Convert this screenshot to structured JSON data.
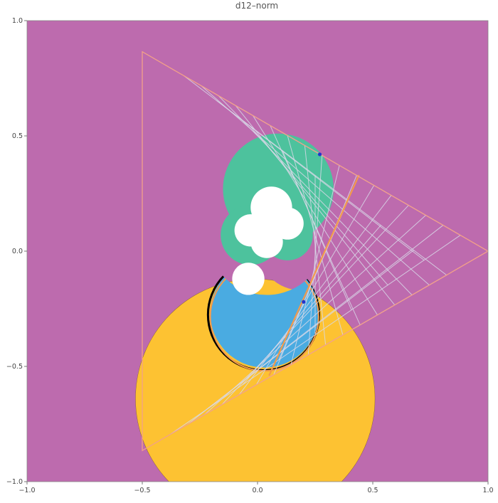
{
  "title": "d12–norm",
  "axes": {
    "x_range": [
      -1.0,
      1.0
    ],
    "y_range": [
      -1.0,
      1.0
    ],
    "x_ticks": [
      -1.0,
      -0.5,
      0.0,
      0.5,
      1.0
    ],
    "y_ticks": [
      -1.0,
      -0.5,
      0.0,
      0.5,
      1.0
    ],
    "x_tick_labels": [
      "−1.0",
      "−0.5",
      "0.0",
      "0.5",
      "1.0"
    ],
    "y_tick_labels": [
      "−1.0",
      "−0.5",
      "0.0",
      "0.5",
      "1.0"
    ]
  },
  "colors": {
    "background_region": "#BD6BAE",
    "yellow_region": "#FDC232",
    "blue_region": "#4AABE1",
    "green_region": "#4DC29D",
    "white_region": "#FFFFFF",
    "triangle": "#F2A089",
    "mesh": "#D8D8E8",
    "orange_band": "#F39A4B",
    "point": "#2234CC"
  },
  "shapes": {
    "yellow_disk": {
      "center": [
        -0.01,
        -0.64
      ],
      "radius": 0.52
    },
    "yellow_notch": {
      "center": [
        0.19,
        0.02
      ],
      "radius": 0.19
    },
    "green_blob": [
      {
        "center": [
          0.09,
          0.27
        ],
        "radius": 0.24
      },
      {
        "center": [
          -0.03,
          0.07
        ],
        "radius": 0.13
      },
      {
        "center": [
          0.13,
          0.07
        ],
        "radius": 0.11
      }
    ],
    "white_blob": [
      {
        "center": [
          0.06,
          0.19
        ],
        "radius": 0.09
      },
      {
        "center": [
          -0.03,
          0.09
        ],
        "radius": 0.07
      },
      {
        "center": [
          0.13,
          0.12
        ],
        "radius": 0.07
      },
      {
        "center": [
          0.04,
          0.04
        ],
        "radius": 0.07
      }
    ],
    "white_small": {
      "center": [
        -0.04,
        -0.12
      ],
      "radius": 0.07
    },
    "blue_disk": {
      "center": [
        0.03,
        -0.27
      ],
      "radius": 0.235
    },
    "blue_notch": {
      "center": [
        0.04,
        0.07
      ],
      "radius": 0.26
    },
    "triangle": [
      [
        -0.5,
        0.865
      ],
      [
        1.0,
        0.0
      ],
      [
        -0.5,
        -0.865
      ]
    ],
    "points": [
      [
        0.27,
        0.42
      ],
      [
        0.2,
        -0.22
      ]
    ]
  }
}
